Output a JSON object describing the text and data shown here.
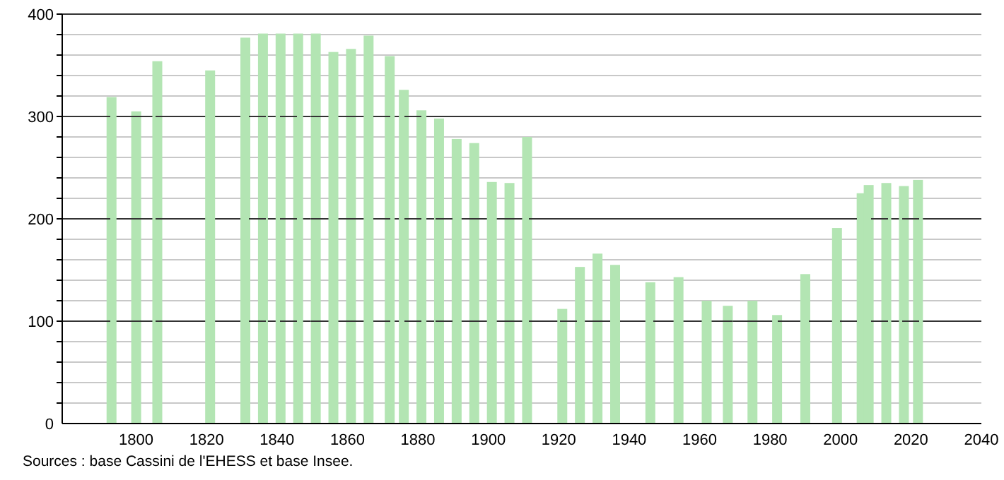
{
  "chart_data": {
    "type": "bar",
    "x": [
      1793,
      1800,
      1806,
      1821,
      1831,
      1836,
      1841,
      1846,
      1851,
      1856,
      1861,
      1866,
      1872,
      1876,
      1881,
      1886,
      1891,
      1896,
      1901,
      1906,
      1911,
      1921,
      1926,
      1931,
      1936,
      1946,
      1954,
      1962,
      1968,
      1975,
      1982,
      1990,
      1999,
      2006,
      2008,
      2013,
      2018,
      2022
    ],
    "values": [
      319,
      305,
      354,
      345,
      377,
      381,
      381,
      381,
      381,
      363,
      366,
      379,
      359,
      326,
      306,
      298,
      278,
      274,
      236,
      235,
      280,
      112,
      153,
      166,
      155,
      138,
      143,
      120,
      115,
      120,
      106,
      146,
      191,
      225,
      233,
      235,
      232,
      238
    ],
    "color": "#b3e5b3",
    "xlim": [
      1779,
      2040
    ],
    "xticks": [
      1800,
      1820,
      1840,
      1860,
      1880,
      1900,
      1920,
      1940,
      1960,
      1980,
      2000,
      2020,
      2040
    ],
    "ylim": [
      0,
      400
    ],
    "yticks": [
      0,
      {
        "value": 20,
        "label": null
      },
      {
        "value": 40,
        "label": null
      },
      {
        "value": 60,
        "label": null
      },
      {
        "value": 80,
        "label": null
      },
      100,
      {
        "value": 120,
        "label": null
      },
      {
        "value": 140,
        "label": null
      },
      {
        "value": 160,
        "label": null
      },
      {
        "value": 180,
        "label": null
      },
      200,
      {
        "value": 220,
        "label": null
      },
      {
        "value": 240,
        "label": null
      },
      {
        "value": 260,
        "label": null
      },
      {
        "value": 280,
        "label": null
      },
      300,
      {
        "value": 320,
        "label": null
      },
      {
        "value": 340,
        "label": null
      },
      {
        "value": 360,
        "label": null
      },
      {
        "value": 380,
        "label": null
      },
      400
    ],
    "grid": "y",
    "annotations": [
      "Sources : base Cassini de l'EHESS et base Insee."
    ]
  }
}
